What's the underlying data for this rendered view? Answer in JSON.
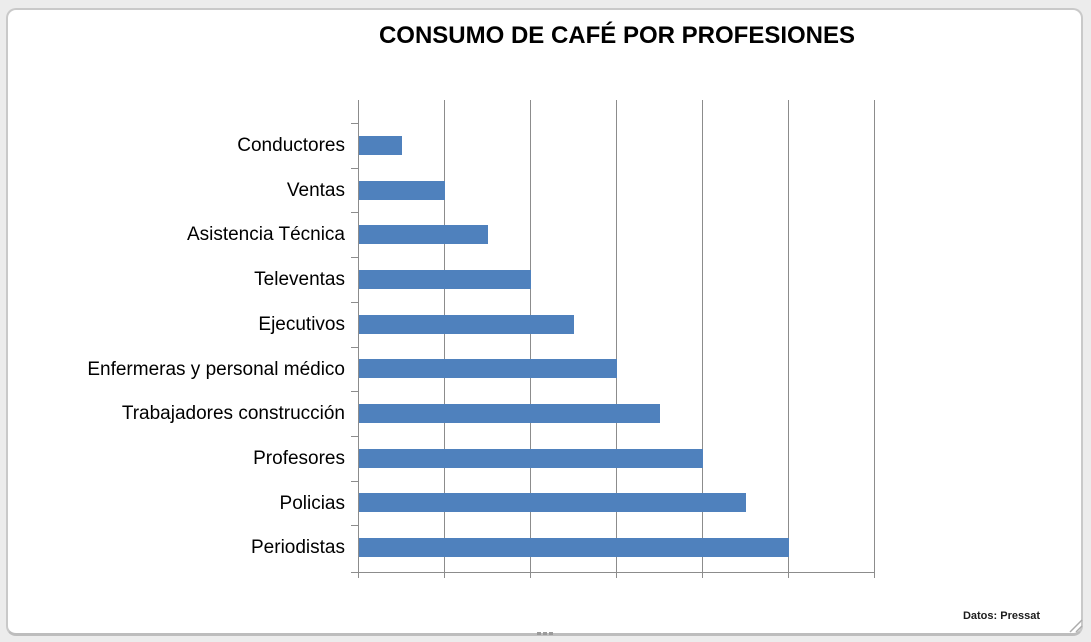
{
  "chart_data": {
    "type": "bar",
    "orientation": "horizontal",
    "title": "CONSUMO DE CAFÉ POR PROFESIONES",
    "categories": [
      "Conductores",
      "Ventas",
      "Asistencia Técnica",
      "Televentas",
      "Ejecutivos",
      "Enfermeras y personal médico",
      "Trabajadores construcción",
      "Profesores",
      "Policias",
      "Periodistas"
    ],
    "values": [
      0.5,
      1,
      1.5,
      2,
      2.5,
      3,
      3.5,
      4,
      4.5,
      5
    ],
    "xlim": [
      0,
      6
    ],
    "gridline_step": 1,
    "grid": true,
    "value_axis_labels_visible": false,
    "legend": "none",
    "source_note": "Datos: Pressat",
    "colors": {
      "bar": "#4F81BD",
      "gridline": "#8C8C8C",
      "axis": "#8C8C8C",
      "title_text": "#000000",
      "label_text": "#000000",
      "frame_border": "#C9C9C9",
      "chart_background": "#FFFFFF",
      "outer_background": "#ECECEC"
    }
  }
}
